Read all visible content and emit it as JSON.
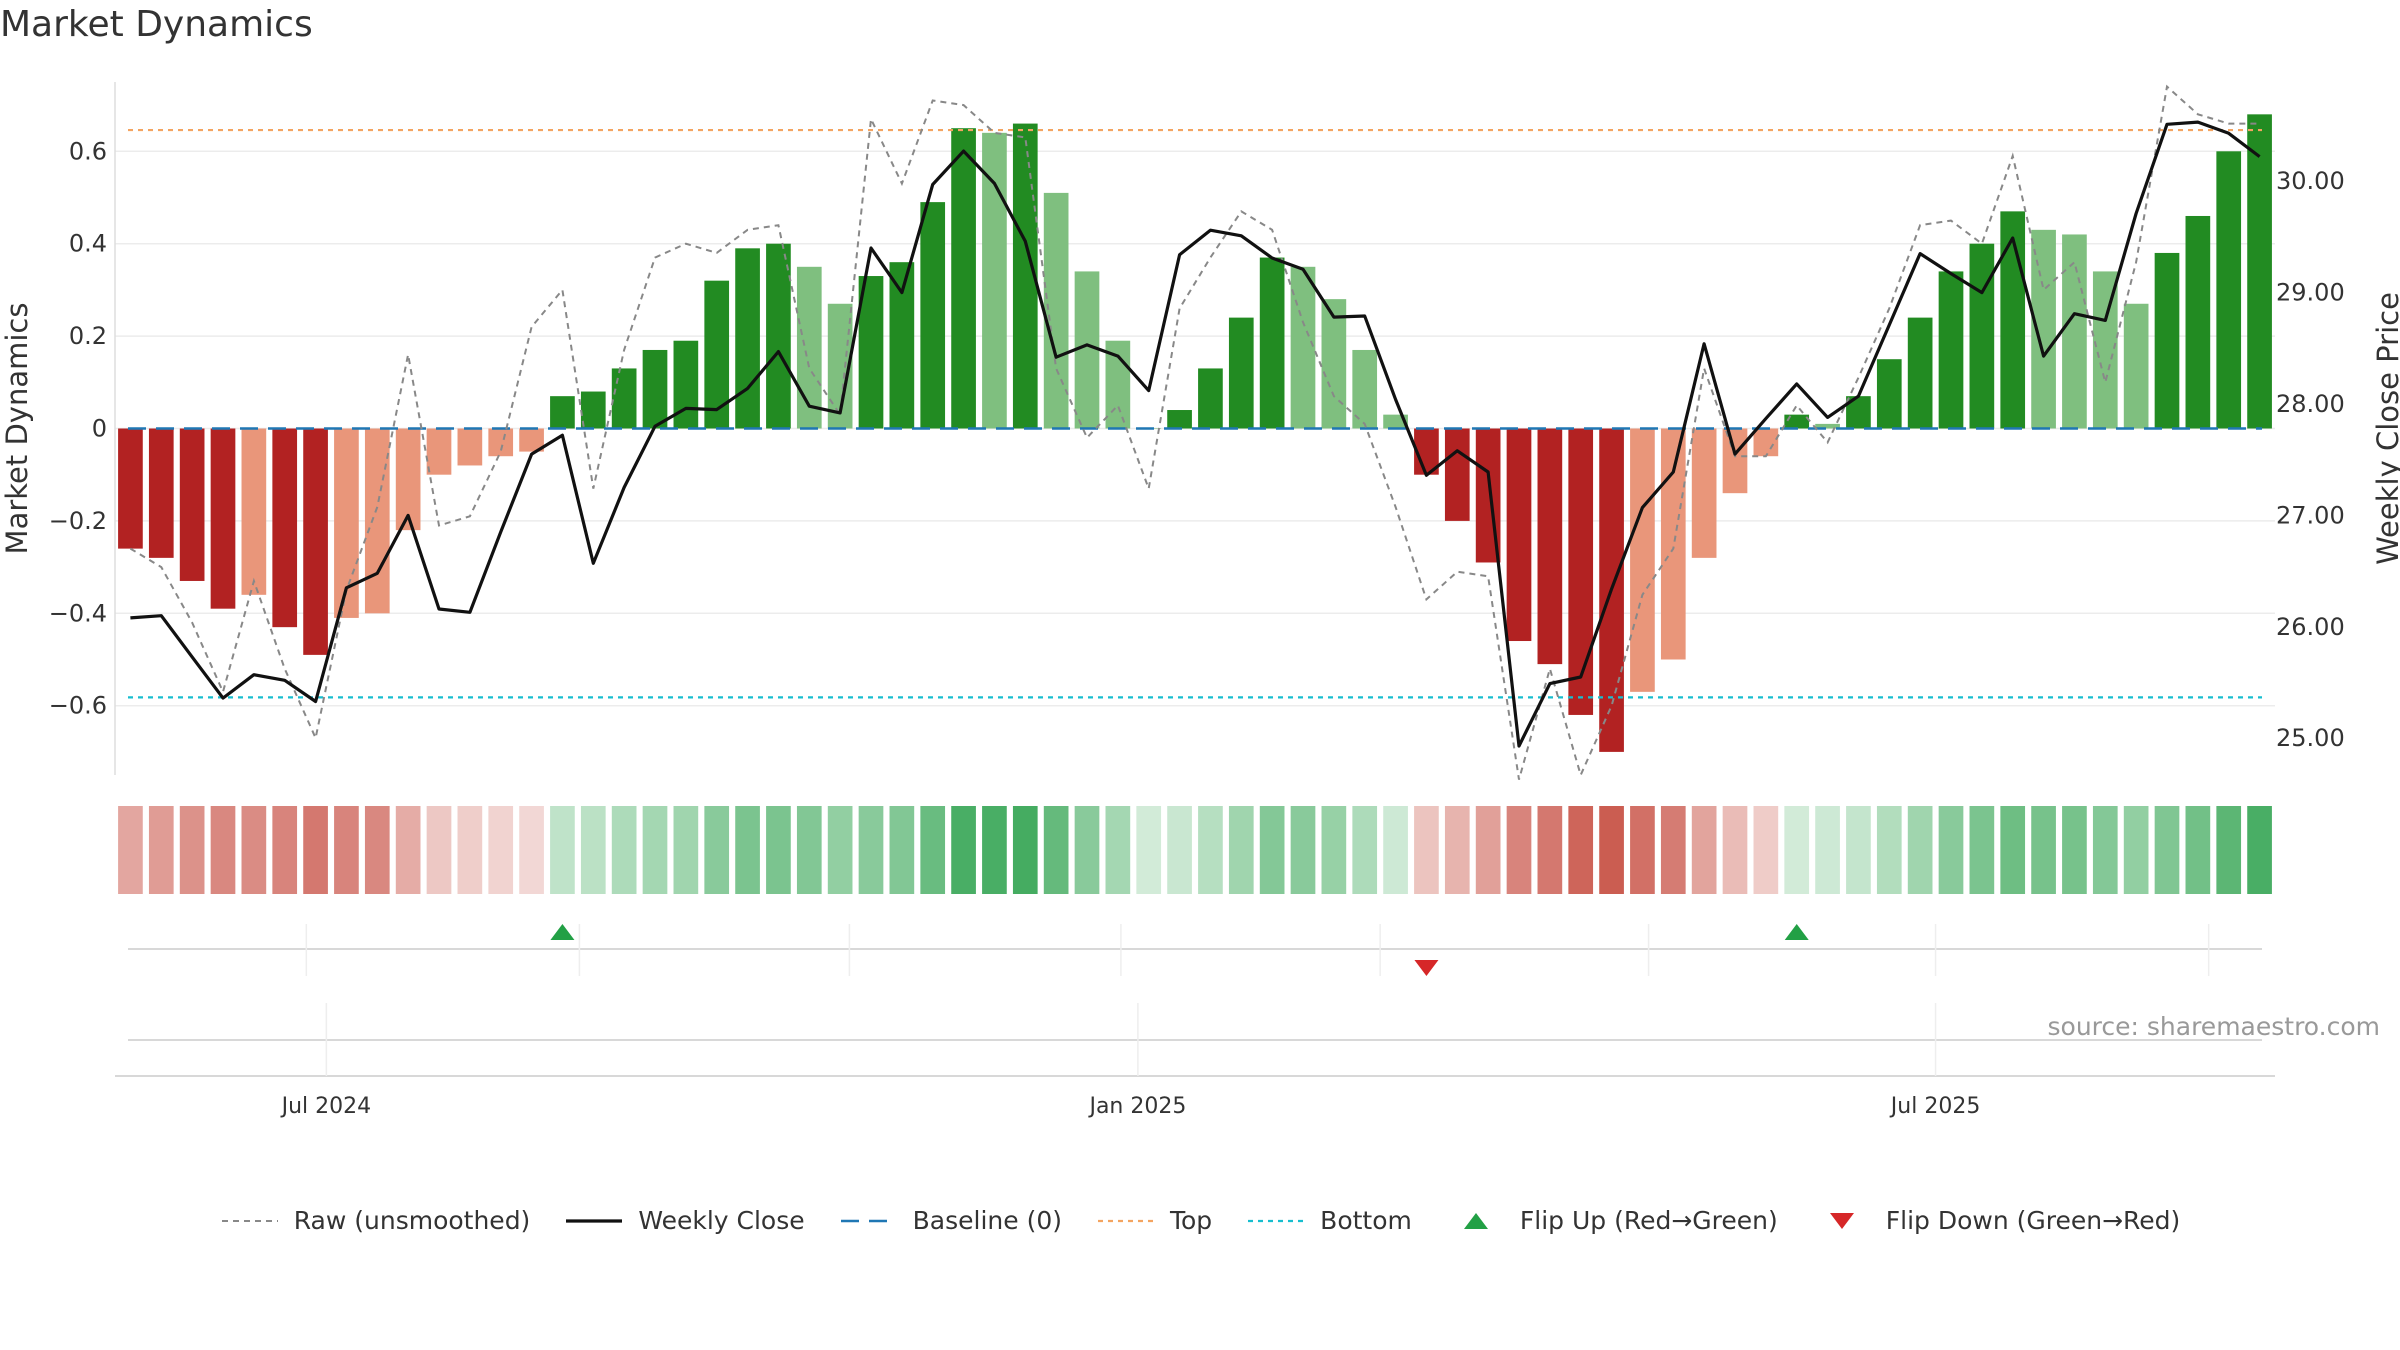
{
  "title": "Market Dynamics",
  "source": "source: sharemaestro.com",
  "colors": {
    "strong_red": "#b22222",
    "light_red": "#e9967a",
    "strong_green": "#228b22",
    "light_green": "#7fbf7f",
    "close_line": "#111111",
    "raw_line": "#888888",
    "baseline": "#1f77b4",
    "top_line": "#f4a460",
    "bottom_line": "#17becf",
    "flip_up": "#22a045",
    "flip_down": "#d62728"
  },
  "legend": [
    {
      "key": "raw",
      "label": "Raw (unsmoothed)"
    },
    {
      "key": "close",
      "label": "Weekly Close"
    },
    {
      "key": "baseline",
      "label": "Baseline (0)"
    },
    {
      "key": "top",
      "label": "Top"
    },
    {
      "key": "bottom",
      "label": "Bottom"
    },
    {
      "key": "flip_up",
      "label": "Flip Up (Red→Green)"
    },
    {
      "key": "flip_down",
      "label": "Flip Down (Green→Red)"
    }
  ],
  "chart_data": {
    "type": "bar",
    "ylabel": "Market Dynamics",
    "y2label": "Weekly Close Price",
    "ylim": [
      -0.75,
      0.75
    ],
    "y_ticks": [
      -0.6,
      -0.4,
      -0.2,
      0,
      0.2,
      0.4,
      0.6
    ],
    "y_tick_labels": [
      "−0.6",
      "−0.4",
      "−0.2",
      "0",
      "0.2",
      "0.4",
      "0.6"
    ],
    "y2lim": [
      24.67,
      30.89
    ],
    "y2_ticks": [
      25,
      26,
      27,
      28,
      29,
      30
    ],
    "y2_tick_labels": [
      "25.00",
      "26.00",
      "27.00",
      "28.00",
      "29.00",
      "30.00"
    ],
    "x_tick_labels": [
      {
        "label": "Jul 2024",
        "week_index": 6.35
      },
      {
        "label": "Jan 2025",
        "week_index": 32.65
      },
      {
        "label": "Jul 2025",
        "week_index": 58.5
      }
    ],
    "top_level": 0.646,
    "bottom_level": -0.582,
    "baseline": 0,
    "grid": true,
    "legend_position": "bottom",
    "weeks": 70,
    "values": [
      -0.26,
      -0.28,
      -0.33,
      -0.39,
      -0.36,
      -0.43,
      -0.49,
      -0.41,
      -0.4,
      -0.22,
      -0.1,
      -0.08,
      -0.06,
      -0.05,
      0.07,
      0.08,
      0.13,
      0.17,
      0.19,
      0.32,
      0.39,
      0.4,
      0.35,
      0.27,
      0.33,
      0.36,
      0.49,
      0.65,
      0.64,
      0.66,
      0.51,
      0.34,
      0.19,
      0,
      0.04,
      0.13,
      0.24,
      0.37,
      0.35,
      0.28,
      0.17,
      0.03,
      -0.1,
      -0.2,
      -0.29,
      -0.46,
      -0.51,
      -0.62,
      -0.7,
      -0.57,
      -0.5,
      -0.28,
      -0.14,
      -0.06,
      0.03,
      0.01,
      0.07,
      0.15,
      0.24,
      0.34,
      0.4,
      0.47,
      0.43,
      0.42,
      0.34,
      0.27,
      0.38,
      0.46,
      0.6,
      0.68
    ],
    "strength": [
      "strong",
      "strong",
      "strong",
      "strong",
      "weak",
      "strong",
      "strong",
      "weak",
      "weak",
      "weak",
      "weak",
      "weak",
      "weak",
      "weak",
      "strong",
      "strong",
      "strong",
      "strong",
      "strong",
      "strong",
      "strong",
      "strong",
      "weak",
      "weak",
      "strong",
      "strong",
      "strong",
      "strong",
      "weak",
      "strong",
      "weak",
      "weak",
      "weak",
      "weak",
      "strong",
      "strong",
      "strong",
      "strong",
      "weak",
      "weak",
      "weak",
      "weak",
      "strong",
      "strong",
      "strong",
      "strong",
      "strong",
      "strong",
      "strong",
      "weak",
      "weak",
      "weak",
      "weak",
      "weak",
      "strong",
      "weak",
      "strong",
      "strong",
      "strong",
      "strong",
      "strong",
      "strong",
      "weak",
      "weak",
      "weak",
      "weak",
      "strong",
      "strong",
      "strong",
      "strong"
    ],
    "weekly_close": [
      26.08,
      26.1,
      25.73,
      25.36,
      25.57,
      25.52,
      25.33,
      26.35,
      26.48,
      27.0,
      26.16,
      26.13,
      26.85,
      27.55,
      27.72,
      26.57,
      27.25,
      27.8,
      27.96,
      27.95,
      28.14,
      28.47,
      27.98,
      27.92,
      29.4,
      29.0,
      29.97,
      30.27,
      29.98,
      29.46,
      28.42,
      28.53,
      28.43,
      28.12,
      29.34,
      29.56,
      29.51,
      29.31,
      29.21,
      28.78,
      28.79,
      28.04,
      27.36,
      27.58,
      27.39,
      24.93,
      25.49,
      25.55,
      26.34,
      27.07,
      27.39,
      28.54,
      27.55,
      27.87,
      28.18,
      27.88,
      28.07,
      28.71,
      29.35,
      29.17,
      29.0,
      29.49,
      28.43,
      28.81,
      28.75,
      29.71,
      30.51,
      30.53,
      30.43,
      30.22
    ],
    "raw": [
      -0.26,
      -0.3,
      -0.42,
      -0.57,
      -0.33,
      -0.52,
      -0.67,
      -0.35,
      -0.17,
      0.16,
      -0.21,
      -0.19,
      -0.05,
      0.22,
      0.3,
      -0.13,
      0.17,
      0.37,
      0.4,
      0.38,
      0.43,
      0.44,
      0.13,
      0.03,
      0.67,
      0.53,
      0.71,
      0.7,
      0.64,
      0.63,
      0.13,
      -0.02,
      0.05,
      -0.13,
      0.26,
      0.37,
      0.47,
      0.43,
      0.23,
      0.07,
      0.01,
      -0.17,
      -0.37,
      -0.31,
      -0.32,
      -0.76,
      -0.52,
      -0.75,
      -0.6,
      -0.36,
      -0.26,
      0.13,
      -0.06,
      -0.06,
      0.05,
      -0.03,
      0.11,
      0.26,
      0.44,
      0.45,
      0.4,
      0.59,
      0.3,
      0.36,
      0.1,
      0.36,
      0.74,
      0.68,
      0.66,
      0.66
    ],
    "heat_band": [
      {
        "sign": -1,
        "level": 0.45
      },
      {
        "sign": -1,
        "level": 0.5
      },
      {
        "sign": -1,
        "level": 0.55
      },
      {
        "sign": -1,
        "level": 0.6
      },
      {
        "sign": -1,
        "level": 0.58
      },
      {
        "sign": -1,
        "level": 0.62
      },
      {
        "sign": -1,
        "level": 0.68
      },
      {
        "sign": -1,
        "level": 0.62
      },
      {
        "sign": -1,
        "level": 0.6
      },
      {
        "sign": -1,
        "level": 0.42
      },
      {
        "sign": -1,
        "level": 0.28
      },
      {
        "sign": -1,
        "level": 0.25
      },
      {
        "sign": -1,
        "level": 0.22
      },
      {
        "sign": -1,
        "level": 0.2
      },
      {
        "sign": 1,
        "level": 0.28
      },
      {
        "sign": 1,
        "level": 0.3
      },
      {
        "sign": 1,
        "level": 0.36
      },
      {
        "sign": 1,
        "level": 0.4
      },
      {
        "sign": 1,
        "level": 0.42
      },
      {
        "sign": 1,
        "level": 0.52
      },
      {
        "sign": 1,
        "level": 0.58
      },
      {
        "sign": 1,
        "level": 0.58
      },
      {
        "sign": 1,
        "level": 0.55
      },
      {
        "sign": 1,
        "level": 0.48
      },
      {
        "sign": 1,
        "level": 0.52
      },
      {
        "sign": 1,
        "level": 0.55
      },
      {
        "sign": 1,
        "level": 0.66
      },
      {
        "sign": 1,
        "level": 0.8
      },
      {
        "sign": 1,
        "level": 0.8
      },
      {
        "sign": 1,
        "level": 0.82
      },
      {
        "sign": 1,
        "level": 0.68
      },
      {
        "sign": 1,
        "level": 0.52
      },
      {
        "sign": 1,
        "level": 0.4
      },
      {
        "sign": 1,
        "level": 0.2
      },
      {
        "sign": 1,
        "level": 0.24
      },
      {
        "sign": 1,
        "level": 0.32
      },
      {
        "sign": 1,
        "level": 0.42
      },
      {
        "sign": 1,
        "level": 0.54
      },
      {
        "sign": 1,
        "level": 0.52
      },
      {
        "sign": 1,
        "level": 0.46
      },
      {
        "sign": 1,
        "level": 0.36
      },
      {
        "sign": 1,
        "level": 0.22
      },
      {
        "sign": -1,
        "level": 0.3
      },
      {
        "sign": -1,
        "level": 0.38
      },
      {
        "sign": -1,
        "level": 0.48
      },
      {
        "sign": -1,
        "level": 0.62
      },
      {
        "sign": -1,
        "level": 0.68
      },
      {
        "sign": -1,
        "level": 0.78
      },
      {
        "sign": -1,
        "level": 0.82
      },
      {
        "sign": -1,
        "level": 0.72
      },
      {
        "sign": -1,
        "level": 0.66
      },
      {
        "sign": -1,
        "level": 0.46
      },
      {
        "sign": -1,
        "level": 0.34
      },
      {
        "sign": -1,
        "level": 0.26
      },
      {
        "sign": 1,
        "level": 0.2
      },
      {
        "sign": 1,
        "level": 0.22
      },
      {
        "sign": 1,
        "level": 0.26
      },
      {
        "sign": 1,
        "level": 0.34
      },
      {
        "sign": 1,
        "level": 0.42
      },
      {
        "sign": 1,
        "level": 0.52
      },
      {
        "sign": 1,
        "level": 0.58
      },
      {
        "sign": 1,
        "level": 0.64
      },
      {
        "sign": 1,
        "level": 0.6
      },
      {
        "sign": 1,
        "level": 0.6
      },
      {
        "sign": 1,
        "level": 0.54
      },
      {
        "sign": 1,
        "level": 0.48
      },
      {
        "sign": 1,
        "level": 0.56
      },
      {
        "sign": 1,
        "level": 0.62
      },
      {
        "sign": 1,
        "level": 0.72
      },
      {
        "sign": 1,
        "level": 0.8
      }
    ],
    "flips": [
      {
        "week_index": 14,
        "direction": "up"
      },
      {
        "week_index": 42,
        "direction": "down"
      },
      {
        "week_index": 54,
        "direction": "up"
      }
    ]
  }
}
